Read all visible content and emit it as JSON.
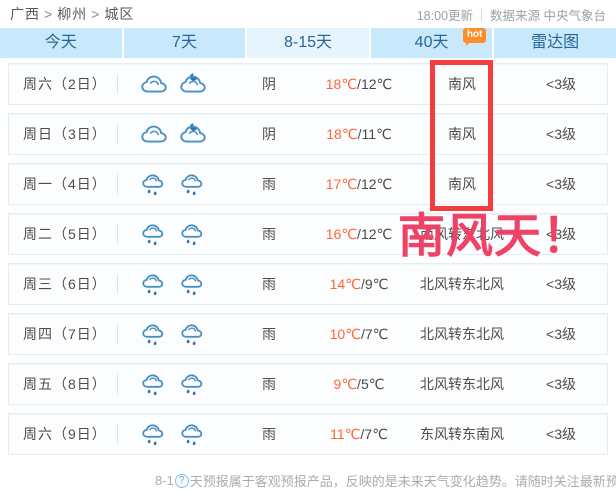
{
  "breadcrumb": {
    "parts": [
      "广西",
      "柳州",
      "城区"
    ],
    "separator": ">"
  },
  "header_right": {
    "updated": "18:00更新",
    "source": "数据来源 中央气象台"
  },
  "tabs": [
    {
      "label": "今天"
    },
    {
      "label": "7天"
    },
    {
      "label": "8-15天",
      "active": true
    },
    {
      "label": "40天",
      "badge": "hot"
    },
    {
      "label": "雷达图"
    }
  ],
  "table": {
    "temp_separator": "/",
    "rows": [
      {
        "day": "周六（2日）",
        "icons": [
          "cloud",
          "cloud-moon"
        ],
        "weather": "阴",
        "temp_high": "18℃",
        "temp_low": "12℃",
        "wind": "南风",
        "level": "<3级"
      },
      {
        "day": "周日（3日）",
        "icons": [
          "cloud",
          "cloud-moon"
        ],
        "weather": "阴",
        "temp_high": "18℃",
        "temp_low": "11℃",
        "wind": "南风",
        "level": "<3级"
      },
      {
        "day": "周一（4日）",
        "icons": [
          "rain",
          "rain"
        ],
        "weather": "雨",
        "temp_high": "17℃",
        "temp_low": "12℃",
        "wind": "南风",
        "level": "<3级"
      },
      {
        "day": "周二（5日）",
        "icons": [
          "rain",
          "rain"
        ],
        "weather": "雨",
        "temp_high": "16℃",
        "temp_low": "12℃",
        "wind": "南风转东北风",
        "level": "<3级"
      },
      {
        "day": "周三（6日）",
        "icons": [
          "rain",
          "rain"
        ],
        "weather": "雨",
        "temp_high": "14℃",
        "temp_low": "9℃",
        "wind": "北风转东北风",
        "level": "<3级"
      },
      {
        "day": "周四（7日）",
        "icons": [
          "rain",
          "rain"
        ],
        "weather": "雨",
        "temp_high": "10℃",
        "temp_low": "7℃",
        "wind": "北风转东北风",
        "level": "<3级"
      },
      {
        "day": "周五（8日）",
        "icons": [
          "rain",
          "rain"
        ],
        "weather": "雨",
        "temp_high": "9℃",
        "temp_low": "5℃",
        "wind": "北风转东北风",
        "level": "<3级"
      },
      {
        "day": "周六（9日）",
        "icons": [
          "rain",
          "rain"
        ],
        "weather": "雨",
        "temp_high": "11℃",
        "temp_low": "7℃",
        "wind": "东风转东南风",
        "level": "<3级"
      }
    ]
  },
  "annotation": {
    "overlay_text": "南风天！",
    "box_color": "#f53d3d",
    "text_color": "#ee4266"
  },
  "footer": {
    "prefix": "8-1",
    "help_icon": "?",
    "text": "天预报属于客观预报产品，反映的是未来天气变化趋势。请随时关注最新预报....."
  },
  "colors": {
    "tab_bg": "#c7e9fb",
    "tab_active_bg": "#e6f5fd",
    "tab_text": "#2b6696",
    "hot_badge_bg": "#ff8e2a",
    "temp_high": "#ff6633",
    "icon_stroke": "#4a90c2",
    "row_border": "#e2edf6"
  }
}
